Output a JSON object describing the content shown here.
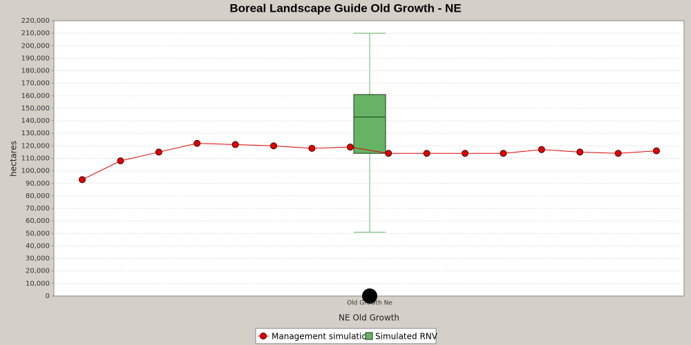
{
  "chart_data": {
    "type": "line_box",
    "title": "Boreal Landscape Guide Old Growth - NE",
    "y_label": "hectares",
    "x_label": "NE Old Growth",
    "categories": [
      "Old Growth Ne"
    ],
    "ylim": [
      0,
      220000
    ],
    "yticks": [
      0,
      {
        "value": 10000,
        "label": "10,000"
      },
      {
        "value": 20000,
        "label": "20,000"
      },
      {
        "value": 30000,
        "label": "30,000"
      },
      {
        "value": 40000,
        "label": "40,000"
      },
      {
        "value": 50000,
        "label": "50,000"
      },
      {
        "value": 60000,
        "label": "60,000"
      },
      {
        "value": 70000,
        "label": "70,000"
      },
      {
        "value": 80000,
        "label": "80,000"
      },
      {
        "value": 90000,
        "label": "90,000"
      },
      {
        "value": 100000,
        "label": "100,000"
      },
      {
        "value": 110000,
        "label": "110,000"
      },
      {
        "value": 120000,
        "label": "120,000"
      },
      {
        "value": 130000,
        "label": "130,000"
      },
      {
        "value": 140000,
        "label": "140,000"
      },
      {
        "value": 150000,
        "label": "150,000"
      },
      {
        "value": 160000,
        "label": "160,000"
      },
      {
        "value": 170000,
        "label": "170,000"
      },
      {
        "value": 180000,
        "label": "180,000"
      },
      {
        "value": 190000,
        "label": "190,000"
      },
      {
        "value": 200000,
        "label": "200,000"
      },
      {
        "value": 210000,
        "label": "210,000"
      },
      {
        "value": 220000,
        "label": "220,000"
      }
    ],
    "grid": true,
    "series": [
      {
        "name": "Management simulation",
        "color": "#e00000",
        "values": [
          93000,
          108000,
          115000,
          122000,
          121000,
          120000,
          118000,
          119000,
          114000,
          114000,
          114000,
          114000,
          117000,
          115000,
          114000,
          116000
        ]
      }
    ],
    "box": {
      "name": "Simulated RNV",
      "color": "#66b366",
      "whisker_low": 51000,
      "q1": 114000,
      "median": 143000,
      "q3": 161000,
      "whisker_high": 210000,
      "outliers": [
        0
      ]
    }
  }
}
